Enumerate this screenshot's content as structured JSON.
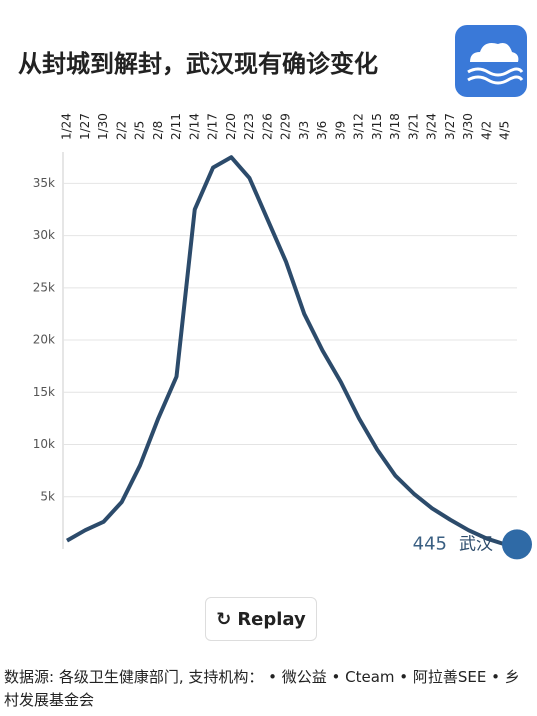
{
  "chart_data": {
    "type": "line",
    "title": "从封城到解封，武汉现有确诊变化",
    "categories": [
      "1/24",
      "1/27",
      "1/30",
      "2/2",
      "2/5",
      "2/8",
      "2/11",
      "2/14",
      "2/17",
      "2/20",
      "2/23",
      "2/26",
      "2/29",
      "3/3",
      "3/6",
      "3/9",
      "3/12",
      "3/15",
      "3/18",
      "3/21",
      "3/24",
      "3/27",
      "3/30",
      "4/2",
      "4/5"
    ],
    "series": [
      {
        "name": "武汉",
        "color": "#2c4b6b",
        "values": [
          800,
          1800,
          2600,
          4500,
          8000,
          12500,
          16500,
          32500,
          36500,
          37500,
          35500,
          31500,
          27500,
          22500,
          19000,
          16000,
          12500,
          9500,
          7000,
          5300,
          3900,
          2800,
          1800,
          1000,
          445
        ]
      }
    ],
    "ylim": [
      0,
      38000
    ],
    "yticks": [
      {
        "value": 5000,
        "label": "5k"
      },
      {
        "value": 10000,
        "label": "10k"
      },
      {
        "value": 15000,
        "label": "15k"
      },
      {
        "value": 20000,
        "label": "20k"
      },
      {
        "value": 25000,
        "label": "25k"
      },
      {
        "value": 30000,
        "label": "30k"
      },
      {
        "value": 35000,
        "label": "35k"
      }
    ],
    "grid": true,
    "button": "Replay",
    "source": "数据源: 各级卫生健康部门, 支持机构： • 微公益 • Cteam • 阿拉善SEE • 乡村发展基金会"
  }
}
